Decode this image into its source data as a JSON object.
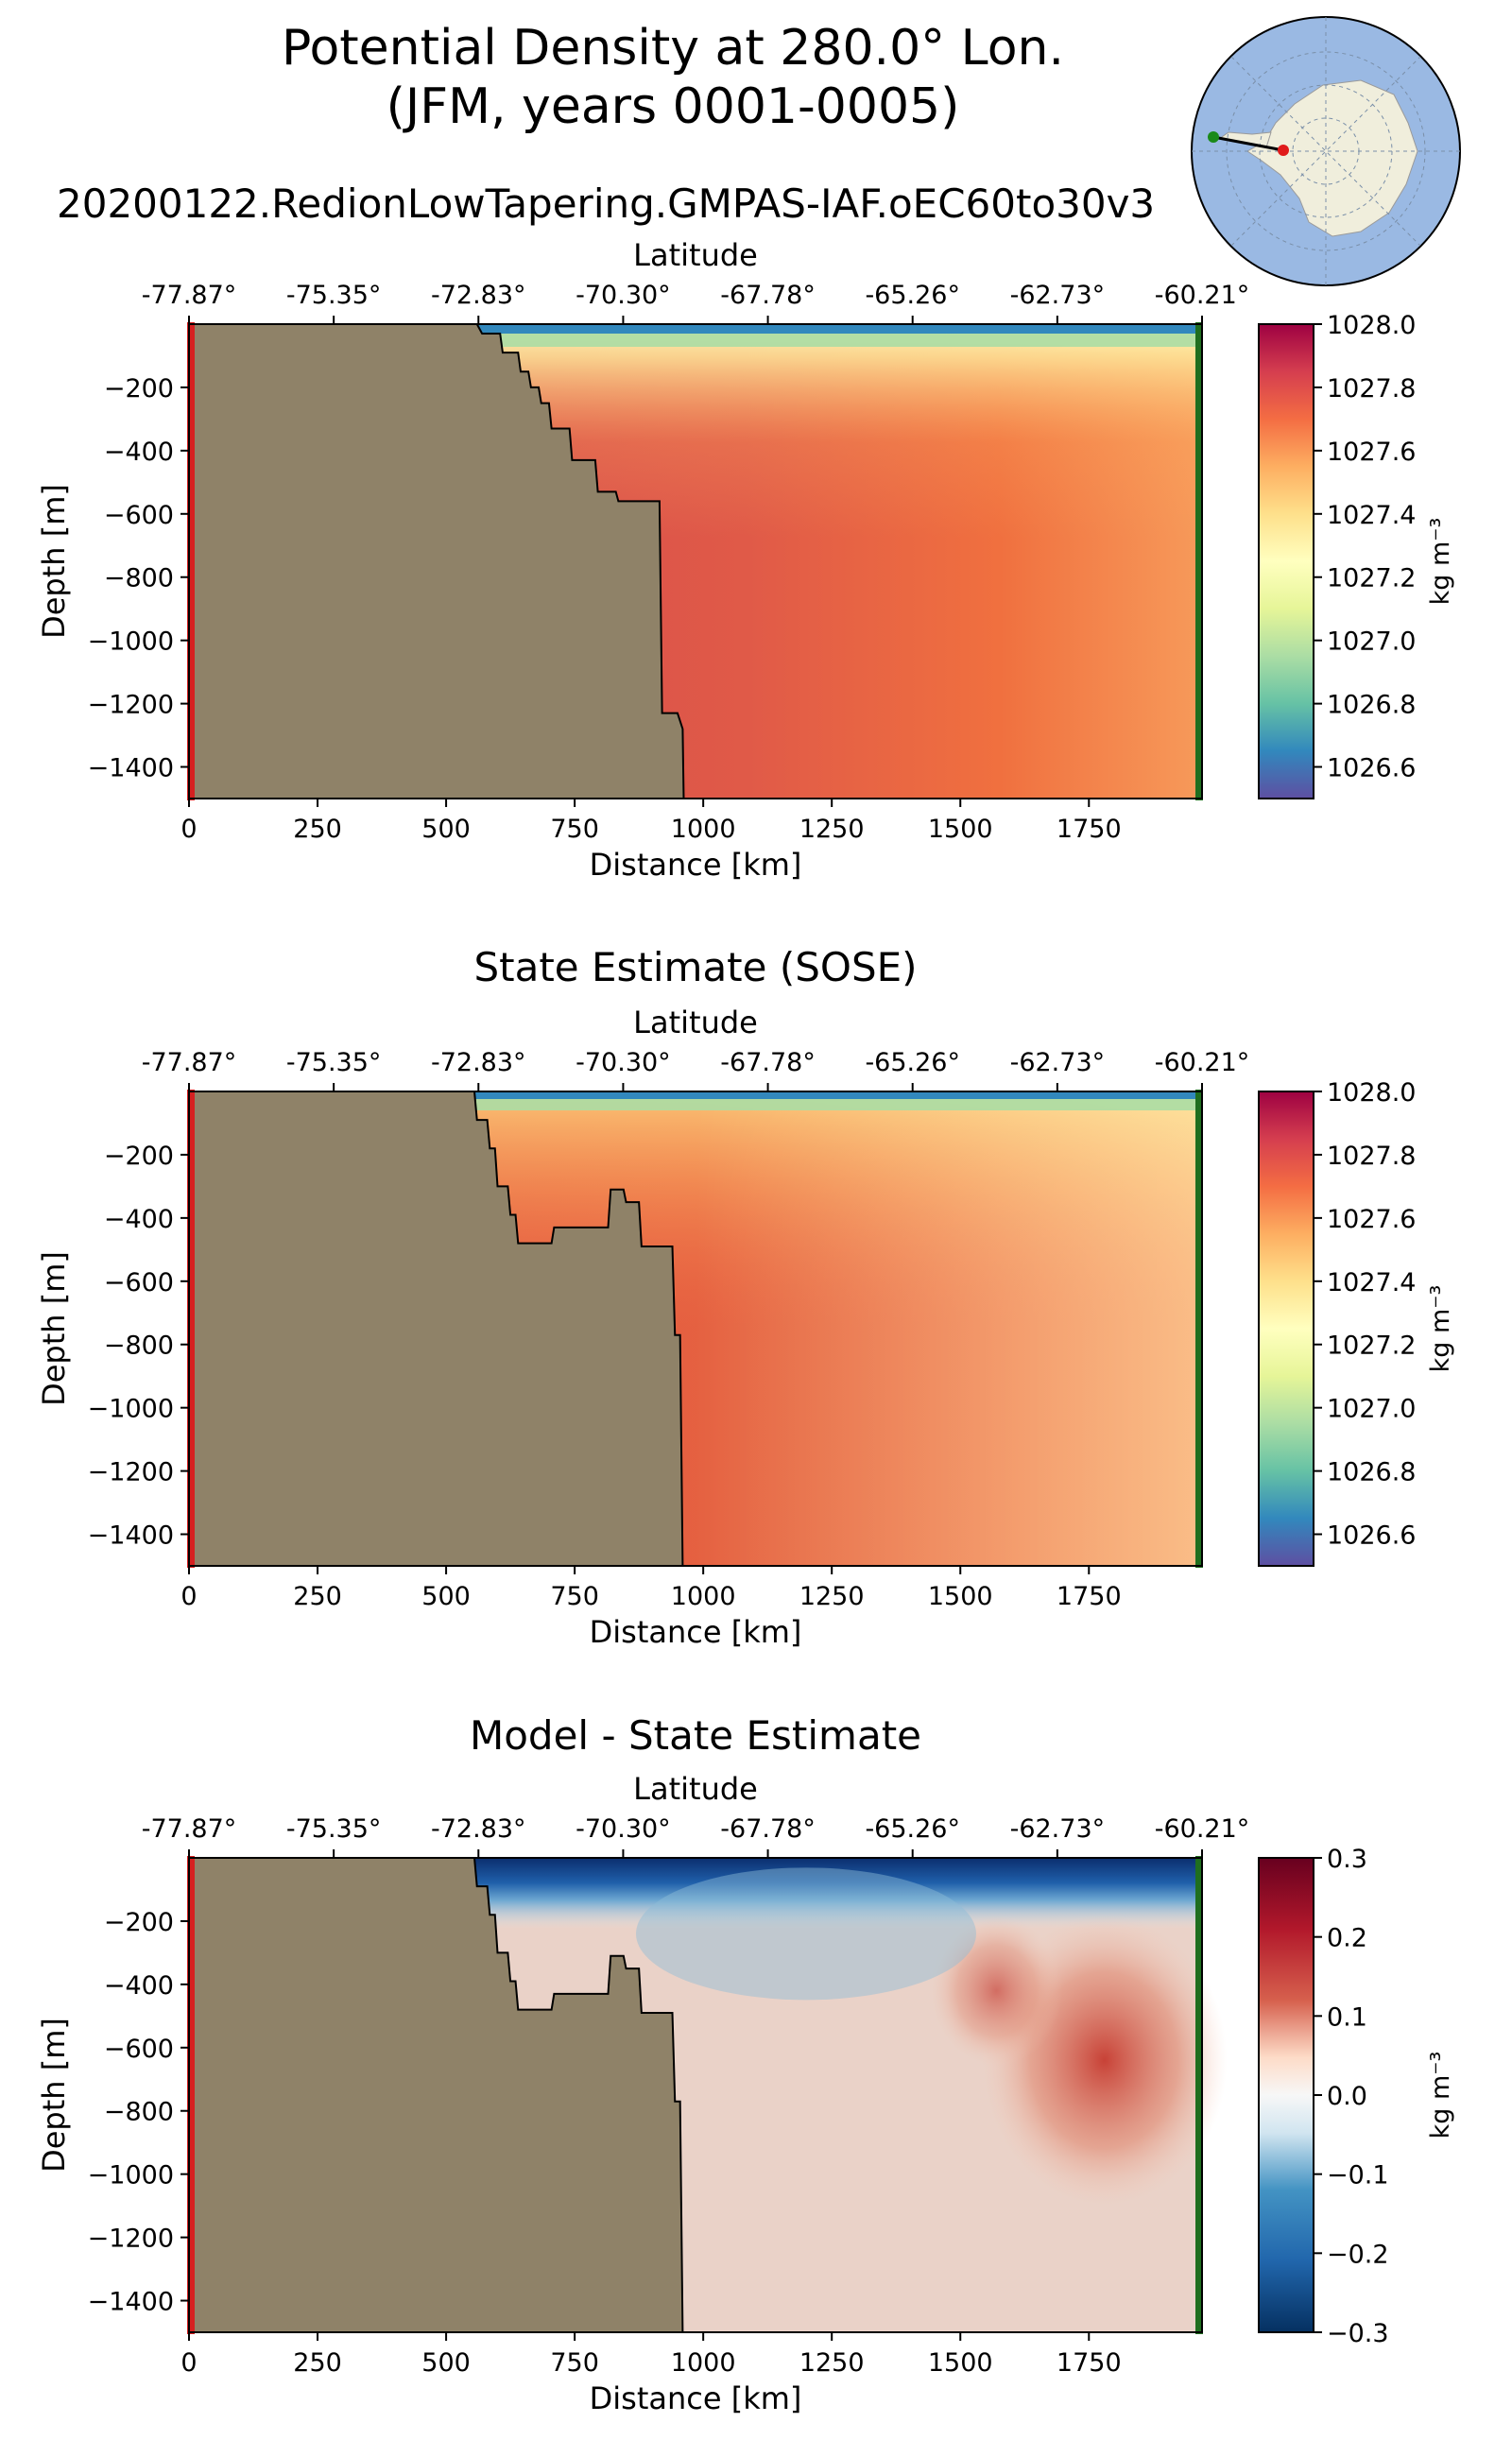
{
  "figure": {
    "title_line1": "Potential Density at 280.0° Lon.",
    "title_line2": "(JFM, years 0001-0005)",
    "run_name": "20200122.RedionLowTapering.GMPAS-IAF.oEC60to30v3"
  },
  "colors": {
    "land": "#8f8268",
    "start_marker": "#d62020",
    "end_marker": "#1f6e1f",
    "map_ocean": "#9ab9e3",
    "map_land": "#f0eedc"
  },
  "inset_map": {
    "name": "antarctic-inset-map",
    "start_dot": "green",
    "end_dot": "red"
  },
  "chart_data": [
    {
      "type": "heatmap",
      "title": "",
      "top_axis_label": "Latitude",
      "latitude_ticks": [
        "-77.87°",
        "-75.35°",
        "-72.83°",
        "-70.30°",
        "-67.78°",
        "-65.26°",
        "-62.73°",
        "-60.21°"
      ],
      "xlabel": "Distance [km]",
      "ylabel": "Depth [m]",
      "x_ticks": [
        0,
        250,
        500,
        750,
        1000,
        1250,
        1500,
        1750
      ],
      "x_tick_labels": [
        "0",
        "250",
        "500",
        "750",
        "1000",
        "1250",
        "1500",
        "1750"
      ],
      "xlim": [
        0,
        1970
      ],
      "y_ticks": [
        -200,
        -400,
        -600,
        -800,
        -1000,
        -1200,
        -1400
      ],
      "y_tick_labels": [
        "−200",
        "−400",
        "−600",
        "−800",
        "−1000",
        "−1200",
        "−1400"
      ],
      "ylim": [
        -1500,
        0
      ],
      "colormap": "Spectral_r",
      "colorbar": {
        "label": "kg m⁻³",
        "vmin": 1026.5,
        "vmax": 1028.0,
        "ticks": [
          1028.0,
          1027.8,
          1027.6,
          1027.4,
          1027.2,
          1027.0,
          1026.8,
          1026.6
        ],
        "tick_labels": [
          "1028.0",
          "1027.8",
          "1027.6",
          "1027.4",
          "1027.2",
          "1027.0",
          "1026.8",
          "1026.6"
        ]
      },
      "bathymetry": [
        [
          0,
          0
        ],
        [
          560,
          0
        ],
        [
          570,
          -30
        ],
        [
          605,
          -30
        ],
        [
          610,
          -90
        ],
        [
          640,
          -90
        ],
        [
          645,
          -150
        ],
        [
          660,
          -150
        ],
        [
          665,
          -200
        ],
        [
          680,
          -200
        ],
        [
          685,
          -250
        ],
        [
          700,
          -250
        ],
        [
          705,
          -330
        ],
        [
          740,
          -330
        ],
        [
          745,
          -430
        ],
        [
          790,
          -430
        ],
        [
          795,
          -530
        ],
        [
          830,
          -530
        ],
        [
          835,
          -560
        ],
        [
          915,
          -560
        ],
        [
          920,
          -1230
        ],
        [
          950,
          -1230
        ],
        [
          960,
          -1280
        ],
        [
          962,
          -1500
        ],
        [
          0,
          -1500
        ]
      ],
      "field_summary": "Surface layer light (~1026.5-1027.0 kg m⁻³), denser water (~1027.8) near the slope and at depth, lighter toward the northern end of the section."
    },
    {
      "type": "heatmap",
      "title": "State Estimate (SOSE)",
      "top_axis_label": "Latitude",
      "latitude_ticks": [
        "-77.87°",
        "-75.35°",
        "-72.83°",
        "-70.30°",
        "-67.78°",
        "-65.26°",
        "-62.73°",
        "-60.21°"
      ],
      "xlabel": "Distance [km]",
      "ylabel": "Depth [m]",
      "x_ticks": [
        0,
        250,
        500,
        750,
        1000,
        1250,
        1500,
        1750
      ],
      "x_tick_labels": [
        "0",
        "250",
        "500",
        "750",
        "1000",
        "1250",
        "1500",
        "1750"
      ],
      "xlim": [
        0,
        1970
      ],
      "y_ticks": [
        -200,
        -400,
        -600,
        -800,
        -1000,
        -1200,
        -1400
      ],
      "y_tick_labels": [
        "−200",
        "−400",
        "−600",
        "−800",
        "−1000",
        "−1200",
        "−1400"
      ],
      "ylim": [
        -1500,
        0
      ],
      "colormap": "Spectral_r",
      "colorbar": {
        "label": "kg m⁻³",
        "vmin": 1026.5,
        "vmax": 1028.0,
        "ticks": [
          1028.0,
          1027.8,
          1027.6,
          1027.4,
          1027.2,
          1027.0,
          1026.8,
          1026.6
        ],
        "tick_labels": [
          "1028.0",
          "1027.8",
          "1027.6",
          "1027.4",
          "1027.2",
          "1027.0",
          "1026.8",
          "1026.6"
        ]
      },
      "bathymetry": [
        [
          0,
          0
        ],
        [
          555,
          0
        ],
        [
          560,
          -90
        ],
        [
          580,
          -90
        ],
        [
          585,
          -180
        ],
        [
          595,
          -180
        ],
        [
          600,
          -300
        ],
        [
          620,
          -300
        ],
        [
          625,
          -390
        ],
        [
          635,
          -390
        ],
        [
          640,
          -480
        ],
        [
          705,
          -480
        ],
        [
          710,
          -430
        ],
        [
          815,
          -430
        ],
        [
          820,
          -310
        ],
        [
          845,
          -310
        ],
        [
          850,
          -350
        ],
        [
          875,
          -350
        ],
        [
          880,
          -490
        ],
        [
          940,
          -490
        ],
        [
          945,
          -770
        ],
        [
          955,
          -770
        ],
        [
          960,
          -1500
        ],
        [
          0,
          -1500
        ]
      ],
      "field_summary": "Thin light surface layer, moderate density (~1027.6) below, lighter upper waters toward the north."
    },
    {
      "type": "heatmap",
      "title": "Model - State Estimate",
      "top_axis_label": "Latitude",
      "latitude_ticks": [
        "-77.87°",
        "-75.35°",
        "-72.83°",
        "-70.30°",
        "-67.78°",
        "-65.26°",
        "-62.73°",
        "-60.21°"
      ],
      "xlabel": "Distance [km]",
      "ylabel": "Depth [m]",
      "x_ticks": [
        0,
        250,
        500,
        750,
        1000,
        1250,
        1500,
        1750
      ],
      "x_tick_labels": [
        "0",
        "250",
        "500",
        "750",
        "1000",
        "1250",
        "1500",
        "1750"
      ],
      "xlim": [
        0,
        1970
      ],
      "y_ticks": [
        -200,
        -400,
        -600,
        -800,
        -1000,
        -1200,
        -1400
      ],
      "y_tick_labels": [
        "−200",
        "−400",
        "−600",
        "−800",
        "−1000",
        "−1200",
        "−1400"
      ],
      "ylim": [
        -1500,
        0
      ],
      "colormap": "RdBu_r",
      "colorbar": {
        "label": "kg m⁻³",
        "vmin": -0.3,
        "vmax": 0.3,
        "ticks": [
          0.3,
          0.2,
          0.1,
          0.0,
          -0.1,
          -0.2,
          -0.3
        ],
        "tick_labels": [
          "0.3",
          "0.2",
          "0.1",
          "0.0",
          "−0.1",
          "−0.2",
          "−0.3"
        ]
      },
      "bathymetry": [
        [
          0,
          0
        ],
        [
          555,
          0
        ],
        [
          560,
          -90
        ],
        [
          580,
          -90
        ],
        [
          585,
          -180
        ],
        [
          595,
          -180
        ],
        [
          600,
          -300
        ],
        [
          620,
          -300
        ],
        [
          625,
          -390
        ],
        [
          635,
          -390
        ],
        [
          640,
          -480
        ],
        [
          705,
          -480
        ],
        [
          710,
          -430
        ],
        [
          815,
          -430
        ],
        [
          820,
          -310
        ],
        [
          845,
          -310
        ],
        [
          850,
          -350
        ],
        [
          875,
          -350
        ],
        [
          880,
          -490
        ],
        [
          940,
          -490
        ],
        [
          945,
          -770
        ],
        [
          955,
          -770
        ],
        [
          960,
          -1500
        ],
        [
          0,
          -1500
        ]
      ],
      "field_summary": "Strong negative difference (~-0.3) in top ~100 m, blue tongue near 300-500 m, positive (~+0.2) near 1750 km at 400-800 m depth, near-zero elsewhere."
    }
  ]
}
